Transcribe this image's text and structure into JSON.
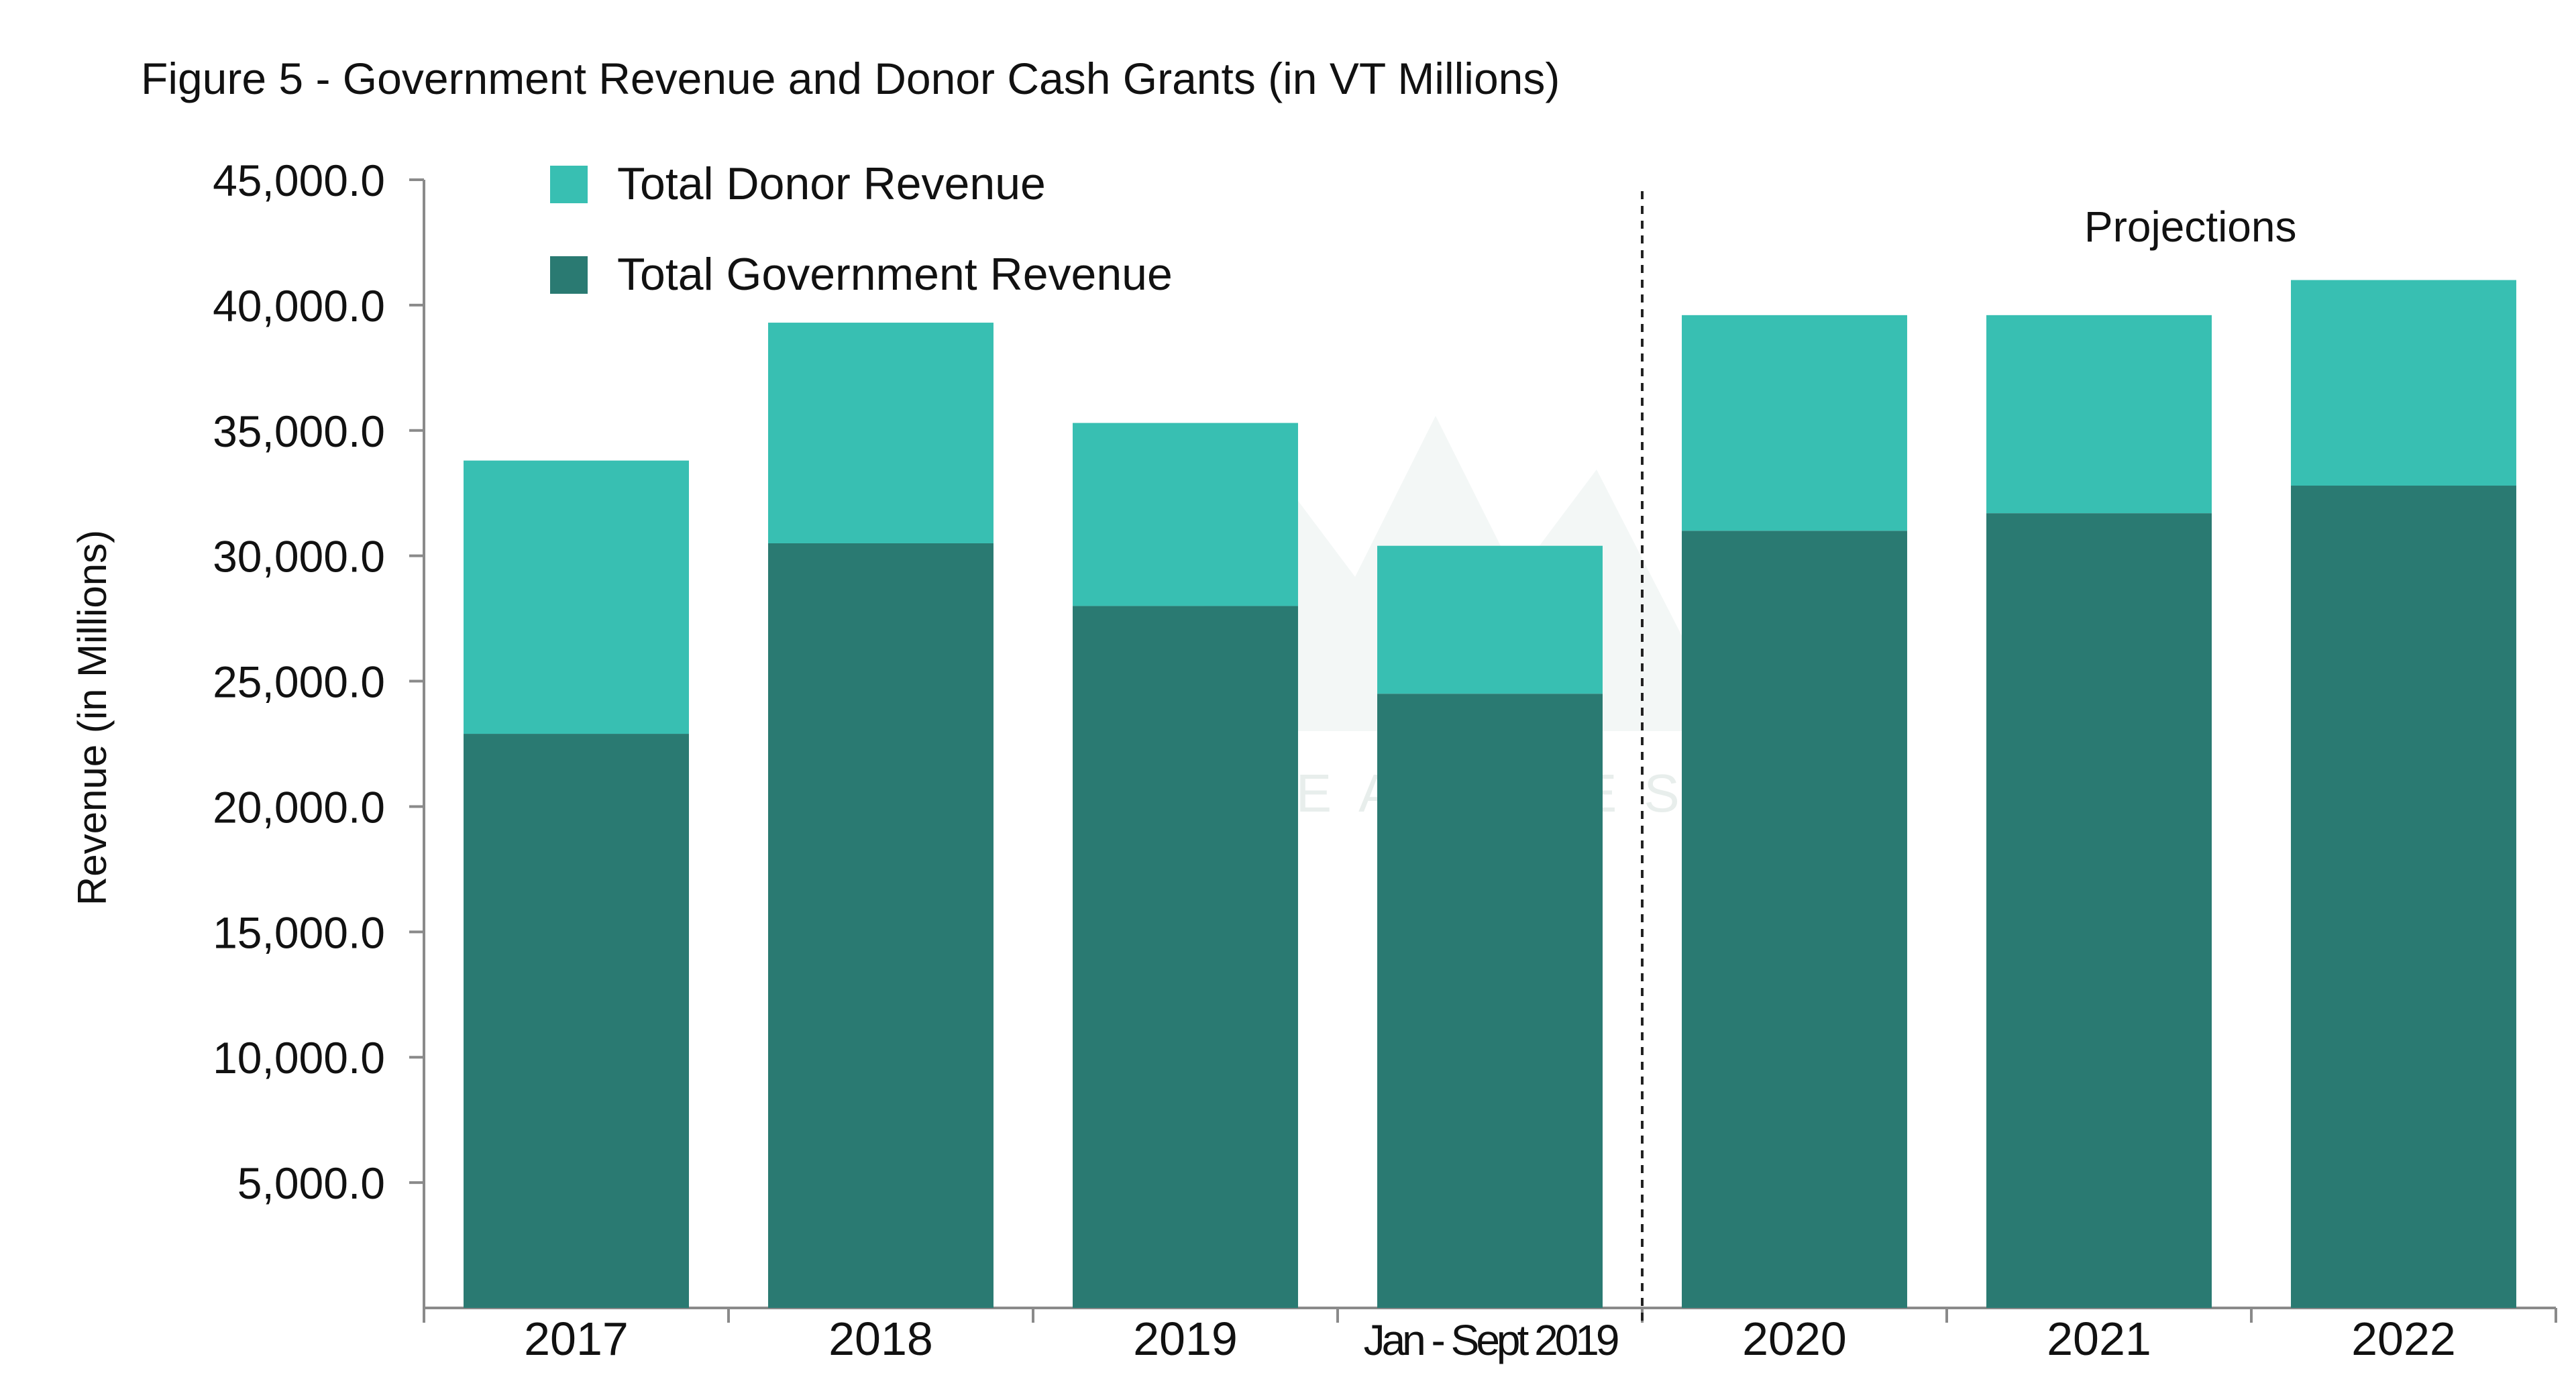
{
  "chart_data": {
    "type": "bar",
    "stacked": true,
    "title": "Figure 5 - Government Revenue and Donor Cash Grants (in VT Millions)",
    "xlabel": "",
    "ylabel": "Revenue (in Millions)",
    "ylim": [
      0,
      45000
    ],
    "ytick_values": [
      5000,
      10000,
      15000,
      20000,
      25000,
      30000,
      35000,
      40000,
      45000
    ],
    "ytick_labels": [
      "5,000.0",
      "10,000.0",
      "15,000.0",
      "20,000.0",
      "25,000.0",
      "30,000.0",
      "35,000.0",
      "40,000.0",
      "45,000.0"
    ],
    "categories": [
      "2017",
      "2018",
      "2019",
      "Jan - Sept 2019",
      "2020",
      "2021",
      "2022"
    ],
    "series": [
      {
        "name": "Total Government Revenue",
        "color": "#2a7a72",
        "values": [
          22900,
          30500,
          28000,
          24500,
          31000,
          31700,
          32800
        ]
      },
      {
        "name": "Total Donor Revenue",
        "color": "#38bfb2",
        "values": [
          10900,
          8800,
          7300,
          5900,
          8600,
          7900,
          8200
        ]
      }
    ],
    "legend": {
      "position": "top-left",
      "order": [
        "Total Donor Revenue",
        "Total Government Revenue"
      ]
    },
    "annotations": [
      {
        "text": "Projections",
        "type": "divider",
        "after_category": "Jan - Sept 2019"
      }
    ],
    "grid": false
  },
  "watermark": {
    "text": "CREATIVES"
  }
}
